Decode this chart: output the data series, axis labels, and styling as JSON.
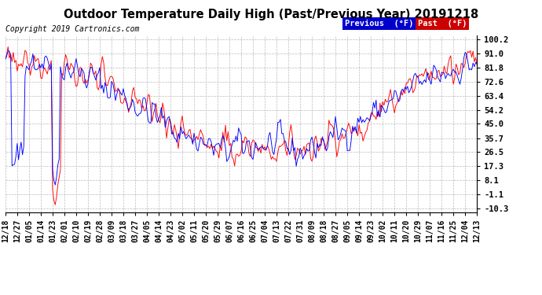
{
  "title": "Outdoor Temperature Daily High (Past/Previous Year) 20191218",
  "copyright": "Copyright 2019 Cartronics.com",
  "legend_label_prev": "Previous  (°F)",
  "legend_label_past": "Past  (°F)",
  "line_color_previous": "#0000ff",
  "line_color_past": "#ff0000",
  "legend_bg_prev": "#0000cc",
  "legend_bg_past": "#cc0000",
  "yticks": [
    -10.3,
    -1.1,
    8.1,
    17.3,
    26.5,
    35.7,
    45.0,
    54.2,
    63.4,
    72.6,
    81.8,
    91.0,
    100.2
  ],
  "ylim": [
    -13.0,
    103.0
  ],
  "background_color": "#ffffff",
  "grid_color": "#bbbbbb",
  "title_fontsize": 10.5,
  "copyright_fontsize": 7,
  "tick_fontsize": 7.5,
  "xtick_labels": [
    "12/18",
    "12/27",
    "01/05",
    "01/14",
    "01/23",
    "02/01",
    "02/10",
    "02/19",
    "02/28",
    "03/09",
    "03/18",
    "03/27",
    "04/05",
    "04/14",
    "04/23",
    "05/02",
    "05/11",
    "05/20",
    "05/29",
    "06/07",
    "06/16",
    "06/25",
    "07/04",
    "07/13",
    "07/22",
    "07/31",
    "08/09",
    "08/18",
    "08/27",
    "09/05",
    "09/14",
    "09/23",
    "10/02",
    "10/11",
    "10/20",
    "10/29",
    "11/07",
    "11/16",
    "11/25",
    "12/04",
    "12/13"
  ]
}
